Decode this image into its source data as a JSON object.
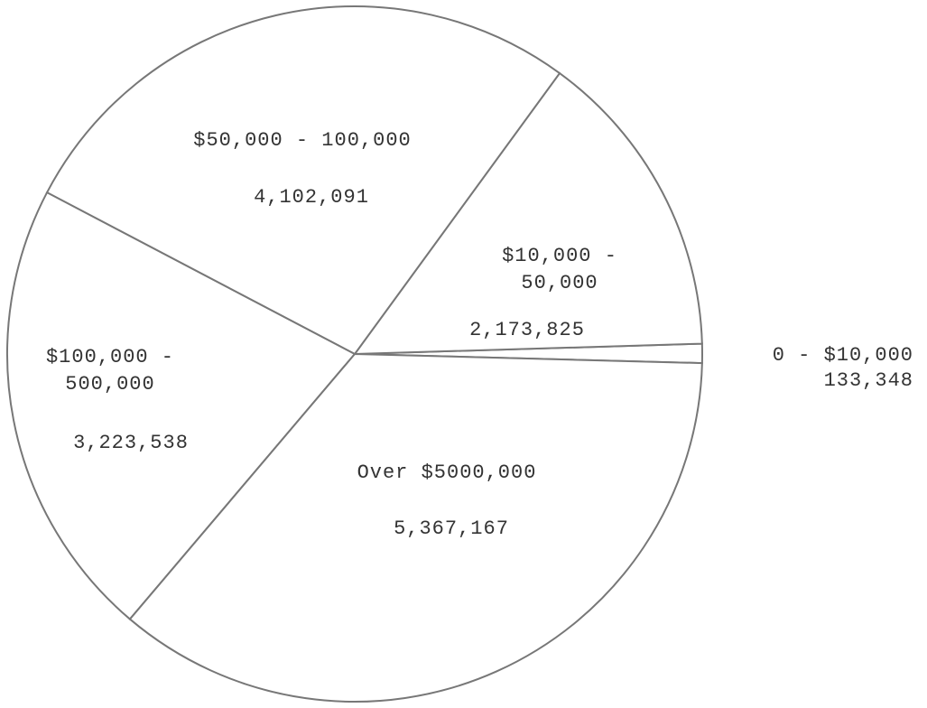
{
  "chart_data": {
    "type": "pie",
    "categories": [
      "0 - $10,000",
      "$10,000 -\n50,000",
      "$50,000 - 100,000",
      "$100,000 -\n500,000",
      "Over $5000,000"
    ],
    "values": [
      133348,
      2173825,
      4102091,
      3223538,
      5367167
    ],
    "value_labels": [
      "133,348",
      "2,173,825",
      "4,102,091",
      "3,223,538",
      "5,367,167"
    ],
    "color": "#ffffff"
  }
}
